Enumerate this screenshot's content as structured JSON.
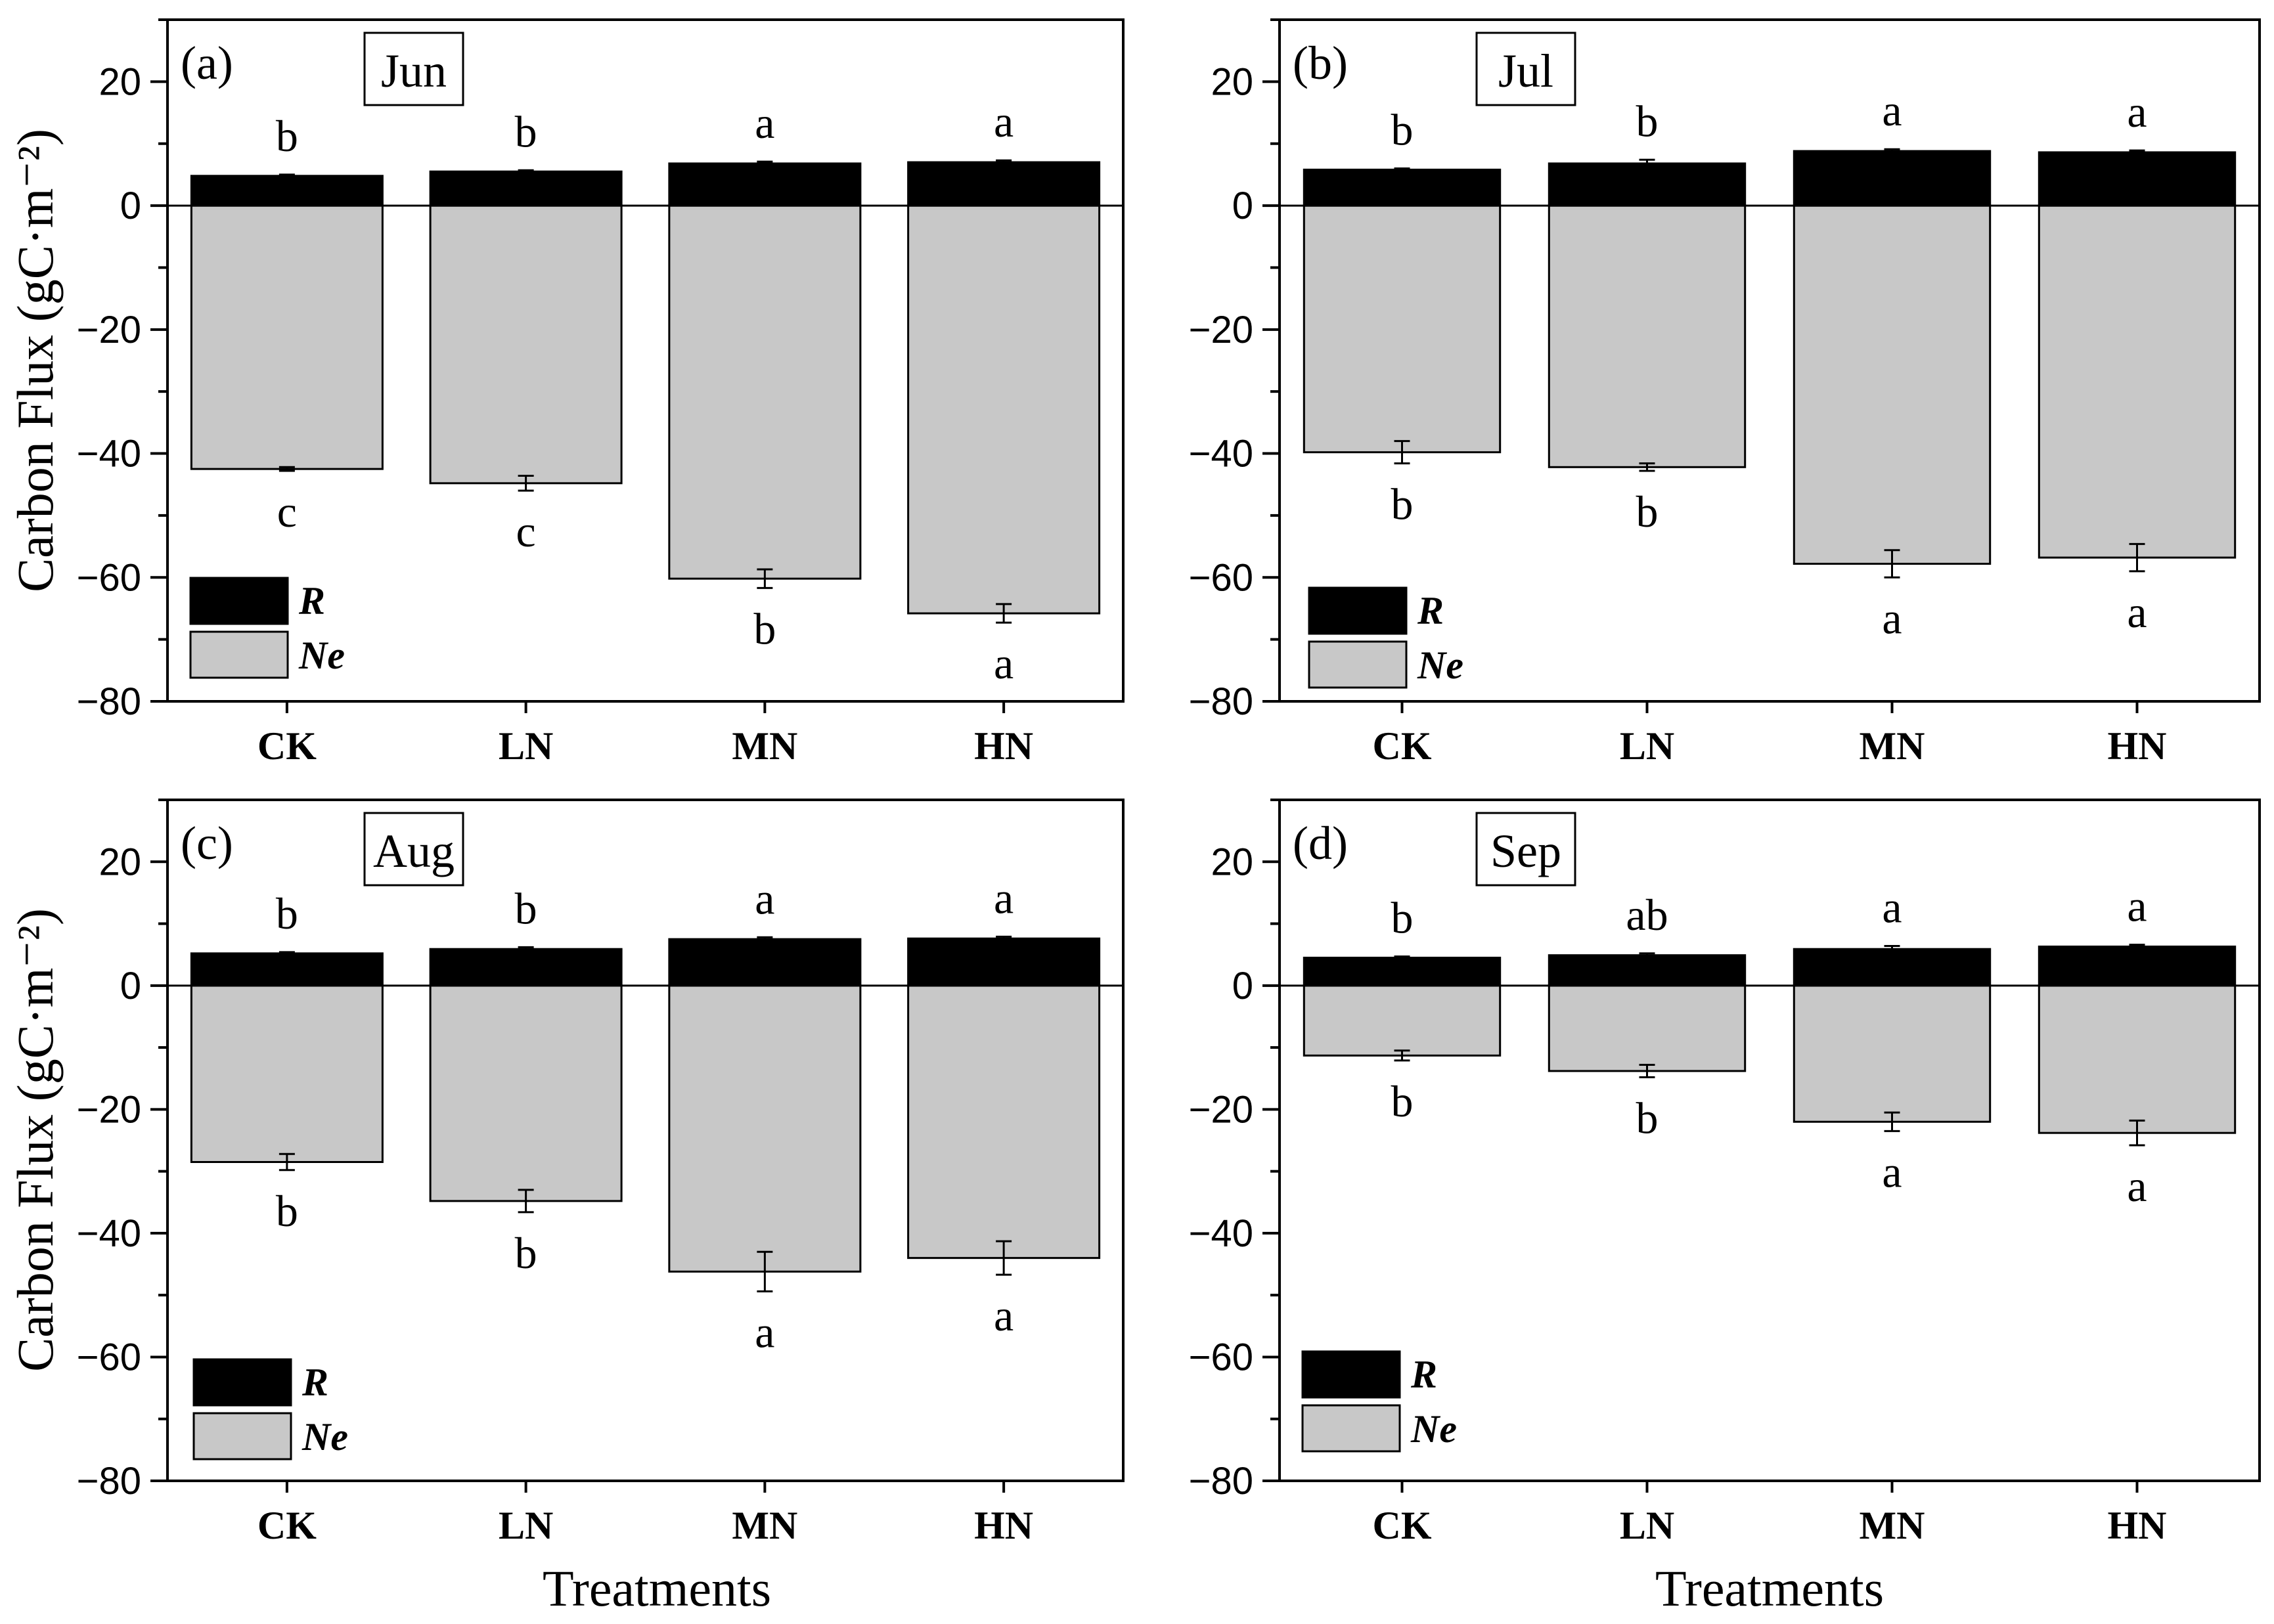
{
  "figure": {
    "ylabel": "Carbon Flux (gC·m⁻²)",
    "xlabel": "Treatments"
  },
  "colors": {
    "R": "#000000",
    "Ne": "#c8c8c8"
  },
  "legend": {
    "R": "R",
    "Ne": "Ne"
  },
  "chart_data": [
    {
      "type": "bar",
      "panel": "(a)",
      "title": "Jun",
      "categories": [
        "CK",
        "LN",
        "MN",
        "HN"
      ],
      "ylim": [
        -80,
        30
      ],
      "yticks": [
        20,
        0,
        -20,
        -40,
        -60,
        -80
      ],
      "series": [
        {
          "name": "R",
          "values": [
            4.8,
            5.5,
            6.8,
            7.0
          ],
          "errors": [
            0.2,
            0.2,
            0.3,
            0.3
          ],
          "sig": [
            "b",
            "b",
            "a",
            "a"
          ]
        },
        {
          "name": "Ne",
          "values": [
            -42.5,
            -44.8,
            -60.2,
            -65.8
          ],
          "errors": [
            0.3,
            1.2,
            1.5,
            1.5
          ],
          "sig": [
            "c",
            "c",
            "b",
            "a"
          ]
        }
      ]
    },
    {
      "type": "bar",
      "panel": "(b)",
      "title": "Jul",
      "categories": [
        "CK",
        "LN",
        "MN",
        "HN"
      ],
      "ylim": [
        -80,
        30
      ],
      "yticks": [
        20,
        0,
        -20,
        -40,
        -60,
        -80
      ],
      "series": [
        {
          "name": "R",
          "values": [
            5.8,
            6.8,
            8.8,
            8.6
          ],
          "errors": [
            0.2,
            0.6,
            0.3,
            0.3
          ],
          "sig": [
            "b",
            "b",
            "a",
            "a"
          ]
        },
        {
          "name": "Ne",
          "values": [
            -39.8,
            -42.2,
            -57.8,
            -56.8
          ],
          "errors": [
            1.8,
            0.6,
            2.2,
            2.2
          ],
          "sig": [
            "b",
            "b",
            "a",
            "a"
          ]
        }
      ]
    },
    {
      "type": "bar",
      "panel": "(c)",
      "title": "Aug",
      "categories": [
        "CK",
        "LN",
        "MN",
        "HN"
      ],
      "ylim": [
        -80,
        30
      ],
      "yticks": [
        20,
        0,
        -20,
        -40,
        -60,
        -80
      ],
      "series": [
        {
          "name": "R",
          "values": [
            5.2,
            5.9,
            7.5,
            7.6
          ],
          "errors": [
            0.2,
            0.3,
            0.3,
            0.3
          ],
          "sig": [
            "b",
            "b",
            "a",
            "a"
          ]
        },
        {
          "name": "Ne",
          "values": [
            -28.5,
            -34.8,
            -46.2,
            -44.0
          ],
          "errors": [
            1.3,
            1.8,
            3.2,
            2.7
          ],
          "sig": [
            "b",
            "b",
            "a",
            "a"
          ]
        }
      ]
    },
    {
      "type": "bar",
      "panel": "(d)",
      "title": "Sep",
      "categories": [
        "CK",
        "LN",
        "MN",
        "HN"
      ],
      "ylim": [
        -80,
        30
      ],
      "yticks": [
        20,
        0,
        -20,
        -40,
        -60,
        -80
      ],
      "series": [
        {
          "name": "R",
          "values": [
            4.5,
            4.9,
            5.9,
            6.3
          ],
          "errors": [
            0.2,
            0.3,
            0.5,
            0.3
          ],
          "sig": [
            "b",
            "ab",
            "a",
            "a"
          ]
        },
        {
          "name": "Ne",
          "values": [
            -11.3,
            -13.8,
            -22.0,
            -23.8
          ],
          "errors": [
            0.8,
            1.0,
            1.5,
            2.0
          ],
          "sig": [
            "b",
            "b",
            "a",
            "a"
          ]
        }
      ]
    }
  ]
}
